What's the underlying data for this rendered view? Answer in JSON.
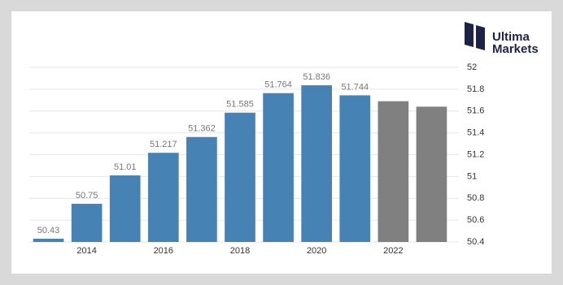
{
  "chart_data": {
    "type": "bar",
    "categories": [
      null,
      "2014",
      null,
      "2016",
      null,
      "2018",
      null,
      "2020",
      null,
      "2022",
      null
    ],
    "values": [
      50.43,
      50.75,
      51.01,
      51.217,
      51.362,
      51.585,
      51.764,
      51.836,
      51.744,
      51.69,
      51.64
    ],
    "value_labels": [
      "50.43",
      "50.75",
      "51.01",
      "51.217",
      "51.362",
      "51.585",
      "51.764",
      "51.836",
      "51.744",
      null,
      null
    ],
    "colors": [
      "#4682b4",
      "#4682b4",
      "#4682b4",
      "#4682b4",
      "#4682b4",
      "#4682b4",
      "#4682b4",
      "#4682b4",
      "#4682b4",
      "#808080",
      "#808080"
    ],
    "ylim": [
      50.4,
      52
    ],
    "yticks": [
      50.4,
      50.6,
      50.8,
      51,
      51.2,
      51.4,
      51.6,
      51.8,
      52
    ],
    "grid": true,
    "y_axis_side": "right"
  },
  "logo": {
    "line1": "Ultima",
    "line2": "Markets"
  }
}
